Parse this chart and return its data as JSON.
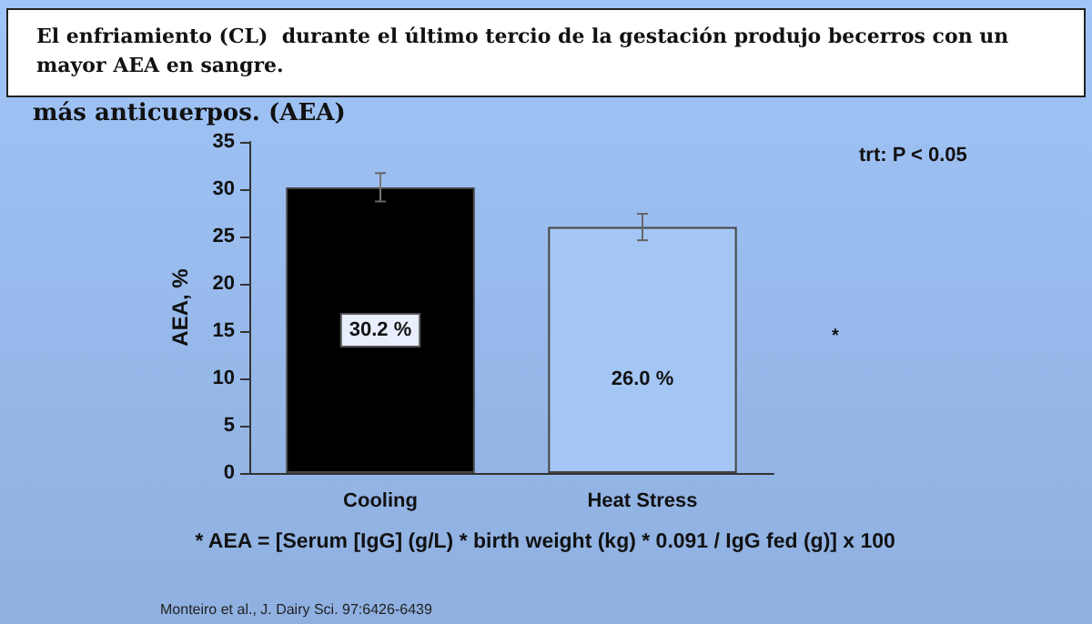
{
  "chart_data": {
    "type": "bar",
    "title": "El enfriamiento (CL)  durante el último tercio de la gestación produjo becerros con un mayor AEA en sangre.",
    "subtitle": "más anticuerpos. (AEA)",
    "ylabel": "AEA, %",
    "categories": [
      "Cooling",
      "Heat Stress"
    ],
    "values": [
      30.2,
      26.0
    ],
    "colors": [
      "#000000",
      "#a3c6f4"
    ],
    "errors": [
      1.5,
      1.4
    ],
    "value_labels": [
      "30.2 %",
      "26.0 %"
    ],
    "ylim": [
      0,
      35
    ],
    "yticks": [
      0,
      5,
      10,
      15,
      20,
      25,
      30,
      35
    ],
    "grid": false,
    "annotations": [
      "trt: P < 0.05",
      "*",
      "* AEA = [Serum [IgG] (g/L) * birth weight (kg) * 0.091 / IgG fed (g)] x 100",
      "Monteiro et al., J. Dairy Sci. 97:6426-6439"
    ]
  }
}
